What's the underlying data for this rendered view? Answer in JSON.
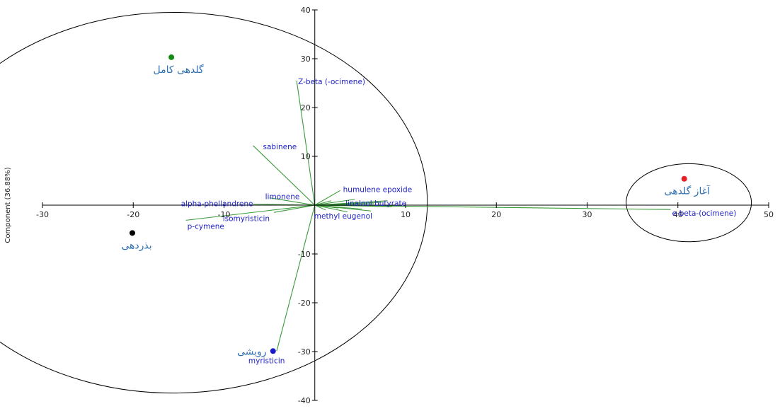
{
  "chart_data": {
    "type": "scatter",
    "title": "",
    "xlabel": "",
    "ylabel": "Component (36.88%)",
    "xlim": [
      -30,
      50
    ],
    "ylim": [
      -40,
      40
    ],
    "x_ticks": [
      -30,
      -20,
      -10,
      10,
      20,
      30,
      40,
      50
    ],
    "y_ticks": [
      -40,
      -30,
      -20,
      -10,
      10,
      20,
      30,
      40
    ],
    "grid": false,
    "series": [
      {
        "name": "گلدهی کامل",
        "x": -15.8,
        "y": 30.3,
        "color": "#138a13"
      },
      {
        "name": "آغاز گلدهی",
        "x": 40.7,
        "y": 5.4,
        "color": "#e8202a"
      },
      {
        "name": "بذردهی",
        "x": -20.1,
        "y": -5.7,
        "color": "#000000"
      },
      {
        "name": "رویشی",
        "x": -4.6,
        "y": -29.9,
        "color": "#1a1acc"
      }
    ],
    "loadings": [
      {
        "label": "Z-beta (-ocimene)",
        "x": -2.0,
        "y": 25.5
      },
      {
        "label": "sabinene",
        "x": -6.8,
        "y": 12.2
      },
      {
        "label": "limonene",
        "x": -5.0,
        "y": 1.5
      },
      {
        "label": "alpha-phellandrene",
        "x": -6.8,
        "y": 0.2
      },
      {
        "label": "isomyristicin",
        "x": -4.5,
        "y": -1.5
      },
      {
        "label": "p-cymene",
        "x": -14.2,
        "y": -3.1
      },
      {
        "label": "humulene epoxide",
        "x": 2.8,
        "y": 3.0
      },
      {
        "label": "linalool butyrate",
        "x": 6.5,
        "y": 0.3
      },
      {
        "label": "methyl eugenol",
        "x": 8.5,
        "y": -0.3
      },
      {
        "label": "e-beta-(ocimene)",
        "x": 39.2,
        "y": -0.9
      },
      {
        "label": "myristicin",
        "x": -4.2,
        "y": -29.9
      }
    ],
    "loadings_cluttered": [
      {
        "label": "",
        "x": 5.2,
        "y": -0.8
      },
      {
        "label": "",
        "x": 7.4,
        "y": 0.6
      },
      {
        "label": "",
        "x": 3.6,
        "y": -1.4
      },
      {
        "label": "",
        "x": 1.8,
        "y": 0.9
      },
      {
        "label": "",
        "x": 9.6,
        "y": -0.1
      },
      {
        "label": "",
        "x": 4.4,
        "y": 1.2
      },
      {
        "label": "",
        "x": 6.2,
        "y": -1.2
      },
      {
        "label": "",
        "x": 2.6,
        "y": -0.6
      },
      {
        "label": "",
        "x": 8.0,
        "y": 0.9
      },
      {
        "label": "",
        "x": 1.2,
        "y": -1.0
      }
    ],
    "cluster_ellipses": [
      {
        "cx": -15.6,
        "cy": 0.5,
        "rx": 28.0,
        "ry": 39.0
      },
      {
        "cx": 41.2,
        "cy": 0.5,
        "rx": 6.9,
        "ry": 8.0
      }
    ]
  }
}
